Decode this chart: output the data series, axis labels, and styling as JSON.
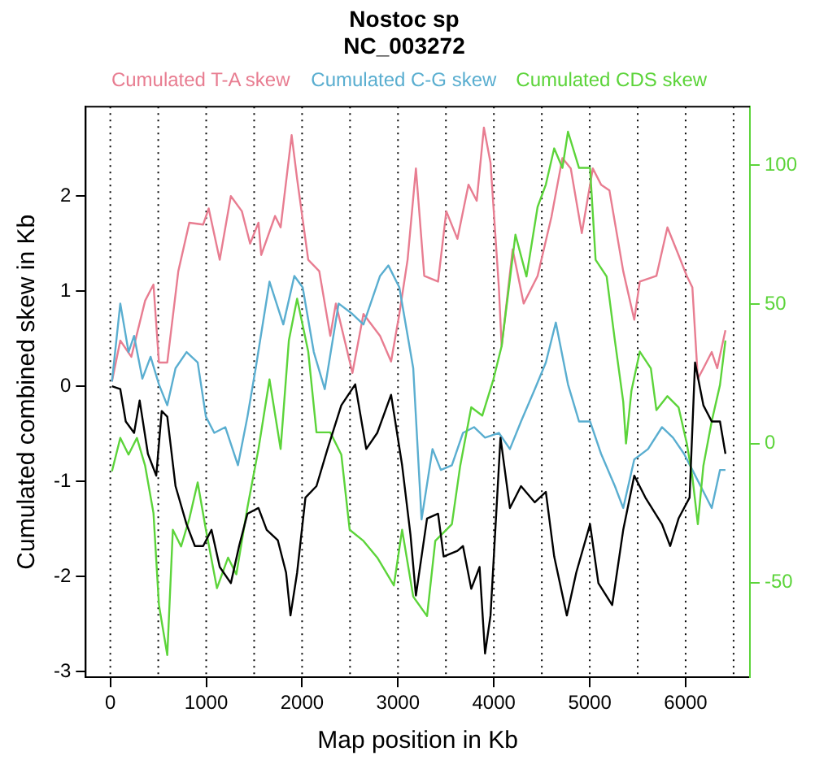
{
  "chart_data": {
    "type": "line",
    "title": "Nostoc sp",
    "subtitle": "NC_003272",
    "xlabel": "Map position in Kb",
    "ylabel": "Cumulated combined skew in Kb",
    "xlim": [
      -257,
      6670
    ],
    "xticks": [
      0,
      1000,
      2000,
      3000,
      4000,
      5000,
      6000
    ],
    "ylim": [
      -3.06,
      2.94
    ],
    "yticks": [
      -3,
      -2,
      -1,
      0,
      1,
      2
    ],
    "y2lim": [
      -84,
      121
    ],
    "y2ticks": [
      -50,
      0,
      50,
      100
    ],
    "legend": "top",
    "grid": false,
    "marker": "none",
    "line_style": "solid",
    "ref_lines": [
      {
        "axis": "x",
        "value": 0,
        "color": "#000000",
        "line_style": "dotted"
      },
      {
        "axis": "x",
        "value": 500,
        "color": "#000000",
        "line_style": "dotted"
      },
      {
        "axis": "x",
        "value": 1000,
        "color": "#000000",
        "line_style": "dotted"
      },
      {
        "axis": "x",
        "value": 1500,
        "color": "#000000",
        "line_style": "dotted"
      },
      {
        "axis": "x",
        "value": 2000,
        "color": "#000000",
        "line_style": "dotted"
      },
      {
        "axis": "x",
        "value": 2500,
        "color": "#000000",
        "line_style": "dotted"
      },
      {
        "axis": "x",
        "value": 3000,
        "color": "#000000",
        "line_style": "dotted"
      },
      {
        "axis": "x",
        "value": 3500,
        "color": "#000000",
        "line_style": "dotted"
      },
      {
        "axis": "x",
        "value": 4000,
        "color": "#000000",
        "line_style": "dotted"
      },
      {
        "axis": "x",
        "value": 4500,
        "color": "#000000",
        "line_style": "dotted"
      },
      {
        "axis": "x",
        "value": 5000,
        "color": "#000000",
        "line_style": "dotted"
      },
      {
        "axis": "x",
        "value": 5500,
        "color": "#000000",
        "line_style": "dotted"
      },
      {
        "axis": "x",
        "value": 6000,
        "color": "#000000",
        "line_style": "dotted"
      },
      {
        "axis": "x",
        "value": 6500,
        "color": "#000000",
        "line_style": "dotted"
      }
    ],
    "series": [
      {
        "name": "Cumulated T-A skew",
        "color": "#e87d91",
        "x": [
          17,
          104,
          219,
          363,
          450,
          507,
          594,
          709,
          824,
          968,
          1026,
          1141,
          1257,
          1372,
          1458,
          1545,
          1574,
          1718,
          1776,
          1891,
          1948,
          2064,
          2179,
          2294,
          2352,
          2525,
          2640,
          2813,
          2928,
          3014,
          3100,
          3187,
          3274,
          3418,
          3504,
          3620,
          3735,
          3821,
          3896,
          3965,
          4052,
          4081,
          4196,
          4311,
          4456,
          4600,
          4715,
          4802,
          4917,
          5032,
          5118,
          5205,
          5349,
          5464,
          5522,
          5695,
          5810,
          5926,
          6012,
          6070,
          6127,
          6185,
          6272,
          6329,
          6415
        ],
        "values": [
          0.05,
          0.48,
          0.31,
          0.9,
          1.07,
          0.25,
          0.25,
          1.21,
          1.72,
          1.7,
          1.87,
          1.33,
          2.0,
          1.84,
          1.5,
          1.72,
          1.38,
          1.79,
          1.67,
          2.64,
          2.18,
          1.33,
          1.21,
          0.53,
          0.87,
          0.14,
          0.76,
          0.53,
          0.26,
          0.76,
          1.33,
          2.29,
          1.16,
          1.1,
          1.84,
          1.55,
          2.12,
          1.95,
          2.72,
          2.35,
          1.04,
          0.42,
          1.44,
          0.87,
          1.16,
          1.78,
          2.4,
          2.29,
          1.61,
          2.29,
          2.12,
          2.06,
          1.21,
          0.7,
          1.1,
          1.16,
          1.67,
          1.38,
          1.16,
          1.04,
          0.08,
          0.19,
          0.36,
          0.19,
          0.59
        ]
      },
      {
        "name": "Cumulated C-G skew",
        "color": "#5aaed0",
        "x": [
          17,
          104,
          190,
          248,
          334,
          420,
          507,
          594,
          680,
          795,
          911,
          997,
          1084,
          1199,
          1331,
          1430,
          1516,
          1660,
          1804,
          1919,
          2006,
          2122,
          2236,
          2381,
          2525,
          2640,
          2813,
          2900,
          3014,
          3159,
          3246,
          3360,
          3447,
          3562,
          3678,
          3793,
          3908,
          4052,
          4167,
          4283,
          4427,
          4542,
          4646,
          4773,
          4888,
          5003,
          5118,
          5262,
          5349,
          5464,
          5608,
          5753,
          5868,
          5983,
          6070,
          6156,
          6272,
          6358,
          6415
        ],
        "values": [
          0.05,
          0.87,
          0.36,
          0.53,
          0.08,
          0.31,
          0.02,
          -0.2,
          0.19,
          0.36,
          0.25,
          -0.32,
          -0.49,
          -0.43,
          -0.83,
          -0.32,
          0.19,
          1.1,
          0.65,
          1.16,
          1.04,
          0.36,
          -0.03,
          0.87,
          0.76,
          0.65,
          1.16,
          1.27,
          1.04,
          0.19,
          -1.4,
          -0.66,
          -0.88,
          -0.83,
          -0.49,
          -0.43,
          -0.54,
          -0.49,
          -0.66,
          -0.37,
          -0.03,
          0.25,
          0.67,
          0.02,
          -0.37,
          -0.37,
          -0.71,
          -1.05,
          -1.28,
          -0.77,
          -0.66,
          -0.43,
          -0.54,
          -0.71,
          -0.88,
          -1.05,
          -1.28,
          -0.88,
          -0.88
        ]
      },
      {
        "name": "Cumulated CDS skew",
        "color": "#5cd43a",
        "axis": "y2",
        "x": [
          17,
          104,
          190,
          277,
          363,
          450,
          507,
          594,
          652,
          738,
          824,
          911,
          997,
          1112,
          1228,
          1314,
          1430,
          1545,
          1660,
          1776,
          1862,
          1948,
          2064,
          2150,
          2294,
          2409,
          2496,
          2640,
          2784,
          2957,
          3043,
          3159,
          3303,
          3389,
          3562,
          3649,
          3764,
          3879,
          3995,
          4081,
          4225,
          4340,
          4456,
          4542,
          4629,
          4715,
          4773,
          4888,
          5003,
          5061,
          5176,
          5262,
          5349,
          5378,
          5435,
          5522,
          5637,
          5695,
          5810,
          5926,
          6012,
          6070,
          6127,
          6185,
          6272,
          6358,
          6415
        ],
        "values": [
          -10,
          2,
          -4,
          2,
          -8,
          -25,
          -58,
          -76,
          -31,
          -37,
          -27,
          -14,
          -31,
          -52,
          -41,
          -47,
          -23,
          -2,
          23,
          -2,
          37,
          52,
          33,
          4,
          4,
          -4,
          -31,
          -35,
          -41,
          -51,
          -31,
          -55,
          -62,
          -35,
          -29,
          -8,
          13,
          10,
          23,
          35,
          75,
          60,
          85,
          93,
          106,
          99,
          112,
          99,
          99,
          66,
          60,
          37,
          15,
          0,
          19,
          33,
          27,
          12,
          17,
          13,
          0,
          -12,
          -29,
          -8,
          8,
          21,
          37
        ]
      },
      {
        "color": "#000000",
        "x": [
          17,
          104,
          161,
          248,
          306,
          392,
          479,
          536,
          594,
          680,
          795,
          882,
          968,
          1055,
          1141,
          1257,
          1343,
          1430,
          1545,
          1631,
          1747,
          1833,
          1879,
          1948,
          2035,
          2150,
          2265,
          2409,
          2554,
          2669,
          2784,
          2928,
          3043,
          3130,
          3187,
          3303,
          3418,
          3476,
          3620,
          3678,
          3764,
          3851,
          3908,
          3965,
          4069,
          4167,
          4283,
          4427,
          4542,
          4629,
          4761,
          4859,
          5003,
          5090,
          5234,
          5349,
          5464,
          5580,
          5753,
          5839,
          5926,
          6041,
          6098,
          6185,
          6272,
          6358,
          6415
        ],
        "values": [
          0,
          -0.03,
          -0.37,
          -0.49,
          -0.15,
          -0.71,
          -0.94,
          -0.26,
          -0.32,
          -1.05,
          -1.45,
          -1.68,
          -1.68,
          -1.51,
          -1.9,
          -2.07,
          -1.68,
          -1.34,
          -1.28,
          -1.51,
          -1.62,
          -1.96,
          -2.41,
          -1.96,
          -1.17,
          -1.05,
          -0.66,
          -0.2,
          0.02,
          -0.66,
          -0.49,
          -0.09,
          -0.83,
          -1.56,
          -2.2,
          -1.39,
          -1.34,
          -1.79,
          -1.73,
          -1.68,
          -2.13,
          -1.9,
          -2.81,
          -2.41,
          -0.54,
          -1.28,
          -1.05,
          -1.22,
          -1.11,
          -1.79,
          -2.41,
          -1.96,
          -1.45,
          -2.07,
          -2.3,
          -1.51,
          -0.94,
          -1.17,
          -1.45,
          -1.68,
          -1.39,
          -1.17,
          0.25,
          -0.2,
          -0.37,
          -0.37,
          -0.71
        ]
      }
    ]
  }
}
